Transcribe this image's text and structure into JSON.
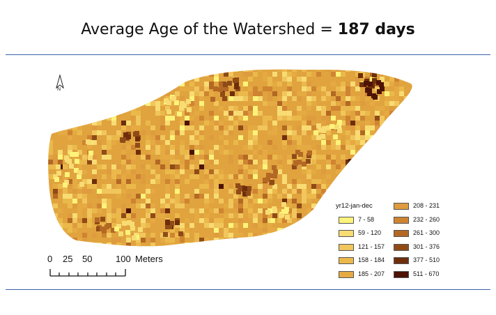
{
  "title": {
    "prefix": "Average Age of the Watershed = ",
    "value": "187 days"
  },
  "north_arrow": {
    "label": "N"
  },
  "scale": {
    "ticks": [
      "0",
      "25",
      "50",
      "100"
    ],
    "unit": "Meters"
  },
  "legend": {
    "title": "yr12-jan-dec",
    "classes": [
      {
        "label": "7 - 58",
        "color": "#fdf37a"
      },
      {
        "label": "59 - 120",
        "color": "#f8dc73"
      },
      {
        "label": "121 - 157",
        "color": "#f1c65c"
      },
      {
        "label": "158 - 184",
        "color": "#ebb94b"
      },
      {
        "label": "185 - 207",
        "color": "#e5aa42"
      },
      {
        "label": "208 - 231",
        "color": "#de9c3e"
      },
      {
        "label": "232 - 260",
        "color": "#cf8431"
      },
      {
        "label": "261 - 300",
        "color": "#b36824"
      },
      {
        "label": "301 - 376",
        "color": "#8f4b17"
      },
      {
        "label": "377 - 510",
        "color": "#6f2e0b"
      },
      {
        "label": "511 - 670",
        "color": "#4d1304"
      }
    ]
  },
  "map": {
    "dominant_color": "#e0a33e"
  }
}
